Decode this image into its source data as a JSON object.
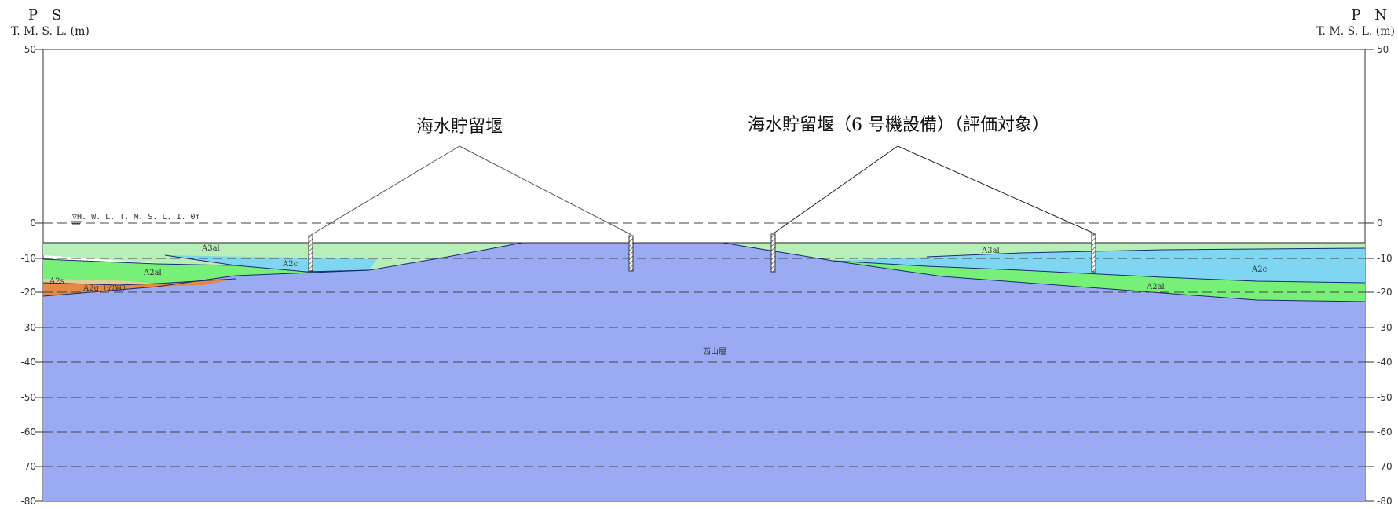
{
  "header": {
    "left_point": "P S",
    "left_unit": "T. M. S. L. (m)",
    "right_point": "P N",
    "right_unit": "T. M. S. L. (m)"
  },
  "y_axis": {
    "ticks": [
      50,
      0,
      -10,
      -20,
      -30,
      -40,
      -50,
      -60,
      -70,
      -80
    ],
    "tick_labels": [
      "50",
      "0",
      "-10",
      "-20",
      "-30",
      "-40",
      "-50",
      "-60",
      "-70",
      "-80"
    ],
    "range": [
      -80,
      50
    ],
    "dashed_gridlines": [
      0,
      -10,
      -20,
      -30,
      -40,
      -50,
      -60,
      -70
    ]
  },
  "water_level": {
    "label": "▽H. W. L.  T. M. S. L. 1. 0m",
    "elevation": 1.0
  },
  "callouts": [
    {
      "text": "海水貯留堰",
      "target_piles": [
        "pile-1",
        "pile-2"
      ]
    },
    {
      "text": "海水貯留堰（6 号機設備）（評価対象）",
      "target_piles": [
        "pile-3",
        "pile-4"
      ]
    }
  ],
  "layers": [
    {
      "name": "A3al",
      "color": "#b8efb8"
    },
    {
      "name": "A2c",
      "color": "#7fd6f2"
    },
    {
      "name": "A2al",
      "color": "#77f077"
    },
    {
      "name": "A2s",
      "color": "#dccf9a"
    },
    {
      "name": "A2g (砂質)",
      "color": "#e58a45"
    },
    {
      "name": "西山層",
      "color": "#9aabf3"
    }
  ],
  "layer_labels": {
    "left_a3al": "A3al",
    "left_a2c": "A2c",
    "left_a2al": "A2al",
    "left_a2s": "A2s",
    "left_a2g": "A2g（砂質）",
    "center_base": "西山層",
    "right_a3al": "A3al",
    "right_a2c": "A2c",
    "right_a2al": "A2al"
  }
}
